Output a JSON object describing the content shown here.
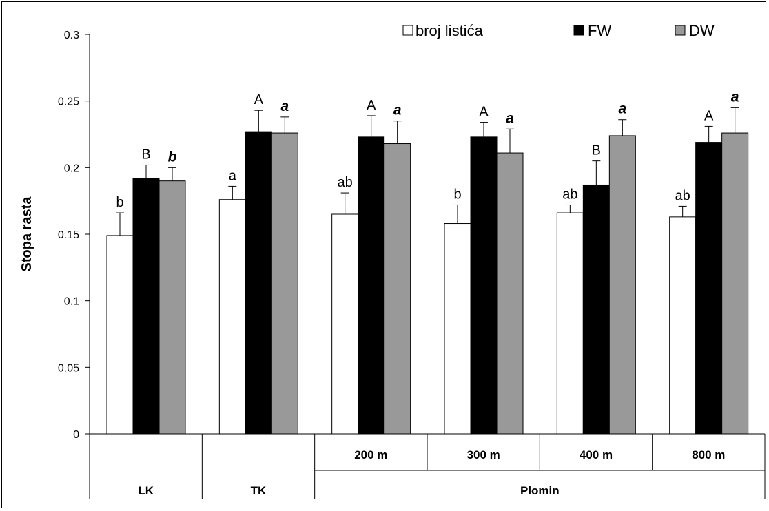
{
  "chart_data": {
    "type": "bar",
    "title": "",
    "ylabel": "Stopa rasta",
    "xlabel": "",
    "ylim": [
      0,
      0.3
    ],
    "yticks": [
      0,
      0.05,
      0.1,
      0.15,
      0.2,
      0.25,
      0.3
    ],
    "ytick_labels": [
      "0",
      "0.05",
      "0.1",
      "0.15",
      "0.2",
      "0.25",
      "0.3"
    ],
    "grid": false,
    "legend_position": "top-right",
    "categories": [
      "LK",
      "TK",
      "200 m",
      "300 m",
      "400 m",
      "800 m"
    ],
    "category_level1": [
      "",
      "",
      "200 m",
      "300 m",
      "400 m",
      "800 m"
    ],
    "category_level2": [
      {
        "label": "LK",
        "span": 1
      },
      {
        "label": "TK",
        "span": 1
      },
      {
        "label": "Plomin",
        "span": 4
      }
    ],
    "series": [
      {
        "name": "broj listića",
        "color": "#ffffff",
        "values": [
          0.149,
          0.176,
          0.165,
          0.158,
          0.166,
          0.163
        ],
        "errors": [
          0.017,
          0.01,
          0.016,
          0.014,
          0.006,
          0.008
        ],
        "letters": [
          "b",
          "a",
          "ab",
          "b",
          "ab",
          "ab"
        ]
      },
      {
        "name": "FW",
        "color": "#000000",
        "values": [
          0.192,
          0.227,
          0.223,
          0.223,
          0.187,
          0.219
        ],
        "errors": [
          0.01,
          0.016,
          0.016,
          0.011,
          0.018,
          0.012
        ],
        "letters": [
          "B",
          "A",
          "A",
          "A",
          "B",
          "A"
        ]
      },
      {
        "name": "DW",
        "color": "#999999",
        "values": [
          0.19,
          0.226,
          0.218,
          0.211,
          0.224,
          0.226
        ],
        "errors": [
          0.01,
          0.012,
          0.017,
          0.018,
          0.012,
          0.019
        ],
        "letters": [
          "b",
          "a",
          "a",
          "a",
          "a",
          "a"
        ]
      }
    ]
  }
}
